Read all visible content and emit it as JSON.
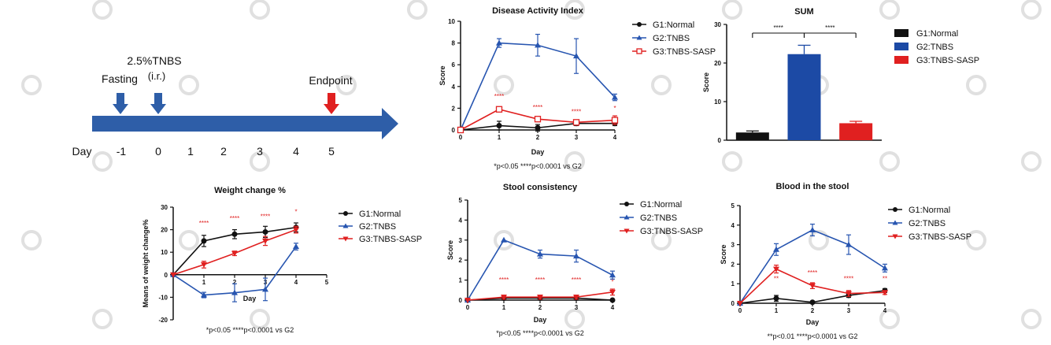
{
  "colors": {
    "normal": "#111111",
    "tnbs": "#2755b0",
    "sasp": "#e02020",
    "timeline": "#2e5ea8",
    "endpoint": "#e02020"
  },
  "timeline": {
    "dose_label": "2.5%TNBS",
    "route_label": "(i.r.)",
    "fasting_label": "Fasting",
    "endpoint_label": "Endpoint",
    "day_label": "Day",
    "days": [
      "-1",
      "0",
      "1",
      "2",
      "3",
      "4",
      "5"
    ]
  },
  "chart_data": [
    {
      "id": "dai",
      "type": "line",
      "title": "Disease Activity Index",
      "xlabel": "Day",
      "ylabel": "Score",
      "xlim": [
        0,
        4
      ],
      "ylim": [
        0,
        10
      ],
      "xticks": [
        0,
        1,
        2,
        3,
        4
      ],
      "yticks": [
        0,
        2,
        4,
        6,
        8,
        10
      ],
      "series": [
        {
          "name": "G1:Normal",
          "color": "#111111",
          "marker": "circle",
          "x": [
            0,
            1,
            2,
            3,
            4
          ],
          "y": [
            0,
            0.4,
            0.2,
            0.6,
            0.6
          ],
          "err": [
            0,
            0.4,
            0.3,
            0.2,
            0.2
          ]
        },
        {
          "name": "G2:TNBS",
          "color": "#2755b0",
          "marker": "triangle",
          "x": [
            0,
            1,
            2,
            3,
            4
          ],
          "y": [
            0,
            8.0,
            7.8,
            6.8,
            3.0
          ],
          "err": [
            0,
            0.4,
            1.0,
            1.6,
            0.3
          ]
        },
        {
          "name": "G3:TNBS-SASP",
          "color": "#e02020",
          "marker": "square",
          "x": [
            0,
            1,
            2,
            3,
            4
          ],
          "y": [
            0,
            1.9,
            1.0,
            0.7,
            0.9
          ],
          "err": [
            0,
            0.2,
            0.2,
            0.2,
            0.4
          ]
        }
      ],
      "sig_labels": [
        "****",
        "****",
        "****",
        "*"
      ],
      "sig_x": [
        1,
        2,
        3,
        4
      ],
      "sig_y": [
        2.9,
        1.9,
        1.5,
        1.8
      ],
      "footnote": "*p<0.05 ****p<0.0001 vs G2"
    },
    {
      "id": "sum",
      "type": "bar",
      "title": "SUM",
      "xlabel": "",
      "ylabel": "Score",
      "ylim": [
        0,
        30
      ],
      "yticks": [
        0,
        10,
        20,
        30
      ],
      "categories": [
        "G1:Normal",
        "G2:TNBS",
        "G3:TNBS-SASP"
      ],
      "values": [
        2.0,
        22.3,
        4.4
      ],
      "err": [
        0.4,
        2.3,
        0.5
      ],
      "colors": [
        "#111111",
        "#1c4aa5",
        "#e02020"
      ],
      "sig_labels": [
        "****",
        "****"
      ]
    },
    {
      "id": "weight",
      "type": "line",
      "title": "Weight change %",
      "xlabel": "Day",
      "ylabel": "Means of weight change%",
      "xlim": [
        0,
        5
      ],
      "ylim": [
        -20,
        30
      ],
      "xticks": [
        1,
        2,
        3,
        4,
        5
      ],
      "yticks": [
        -20,
        -10,
        0,
        10,
        20,
        30
      ],
      "series": [
        {
          "name": "G1:Normal",
          "color": "#111111",
          "marker": "circle",
          "x": [
            0,
            1,
            2,
            3,
            4
          ],
          "y": [
            0,
            15,
            18,
            19,
            21
          ],
          "err": [
            0,
            2.5,
            2,
            2.5,
            2
          ]
        },
        {
          "name": "G2:TNBS",
          "color": "#2755b0",
          "marker": "triangle",
          "x": [
            0,
            1,
            2,
            3,
            4
          ],
          "y": [
            0,
            -9,
            -8,
            -6.5,
            12.5
          ],
          "err": [
            0,
            1.2,
            4,
            5,
            1.5
          ]
        },
        {
          "name": "G3:TNBS-SASP",
          "color": "#e02020",
          "marker": "triangle-down",
          "x": [
            0,
            1,
            2,
            3,
            4
          ],
          "y": [
            0,
            4.5,
            9.5,
            15,
            20
          ],
          "err": [
            0,
            1.5,
            1,
            2,
            1.5
          ]
        }
      ],
      "sig_labels": [
        "****",
        "****",
        "****",
        "*"
      ],
      "sig_x": [
        1,
        2,
        3,
        4
      ],
      "sig_y": [
        22,
        24,
        25,
        27
      ],
      "footnote": "*p<0.05 ****p<0.0001 vs G2"
    },
    {
      "id": "stool",
      "type": "line",
      "title": "Stool consistency",
      "xlabel": "Day",
      "ylabel": "Score",
      "xlim": [
        0,
        4
      ],
      "ylim": [
        0,
        5
      ],
      "xticks": [
        0,
        1,
        2,
        3,
        4
      ],
      "yticks": [
        0,
        1,
        2,
        3,
        4,
        5
      ],
      "series": [
        {
          "name": "G1:Normal",
          "color": "#111111",
          "marker": "circle",
          "x": [
            0,
            1,
            2,
            3,
            4
          ],
          "y": [
            0,
            0.1,
            0.1,
            0.1,
            0
          ],
          "err": [
            0,
            0.1,
            0.1,
            0.1,
            0
          ]
        },
        {
          "name": "G2:TNBS",
          "color": "#2755b0",
          "marker": "triangle",
          "x": [
            0,
            1,
            2,
            3,
            4
          ],
          "y": [
            0,
            3.0,
            2.3,
            2.2,
            1.25
          ],
          "err": [
            0,
            0,
            0.2,
            0.3,
            0.2
          ]
        },
        {
          "name": "G3:TNBS-SASP",
          "color": "#e02020",
          "marker": "triangle-down",
          "x": [
            0,
            1,
            2,
            3,
            4
          ],
          "y": [
            0,
            0.15,
            0.15,
            0.15,
            0.4
          ],
          "err": [
            0,
            0.1,
            0.1,
            0.1,
            0.15
          ]
        }
      ],
      "sig_labels": [
        "****",
        "****",
        "****",
        "*"
      ],
      "sig_x": [
        1,
        2,
        3,
        4
      ],
      "sig_y": [
        0.9,
        0.9,
        0.9,
        0.8
      ],
      "footnote": "*p<0.05 ****p<0.0001 vs G2"
    },
    {
      "id": "blood",
      "type": "line",
      "title": "Blood in the stool",
      "xlabel": "Day",
      "ylabel": "Score",
      "xlim": [
        0,
        4
      ],
      "ylim": [
        0,
        5
      ],
      "xticks": [
        0,
        1,
        2,
        3,
        4
      ],
      "yticks": [
        0,
        1,
        2,
        3,
        4,
        5
      ],
      "series": [
        {
          "name": "G1:Normal",
          "color": "#111111",
          "marker": "circle",
          "x": [
            0,
            1,
            2,
            3,
            4
          ],
          "y": [
            0,
            0.25,
            0.05,
            0.4,
            0.65
          ],
          "err": [
            0,
            0.15,
            0.05,
            0.1,
            0.1
          ]
        },
        {
          "name": "G2:TNBS",
          "color": "#2755b0",
          "marker": "triangle",
          "x": [
            0,
            1,
            2,
            3,
            4
          ],
          "y": [
            0,
            2.75,
            3.75,
            3.0,
            1.8
          ],
          "err": [
            0,
            0.3,
            0.3,
            0.5,
            0.2
          ]
        },
        {
          "name": "G3:TNBS-SASP",
          "color": "#e02020",
          "marker": "triangle-down",
          "x": [
            0,
            1,
            2,
            3,
            4
          ],
          "y": [
            0,
            1.75,
            0.9,
            0.5,
            0.55
          ],
          "err": [
            0,
            0.2,
            0.15,
            0.15,
            0.1
          ]
        }
      ],
      "sig_labels": [
        "**",
        "****",
        "****",
        "**"
      ],
      "sig_x": [
        1,
        2,
        3,
        4
      ],
      "sig_y": [
        1.15,
        1.45,
        1.15,
        1.15
      ],
      "footnote": "**p<0.01 ****p<0.0001 vs G2"
    }
  ]
}
